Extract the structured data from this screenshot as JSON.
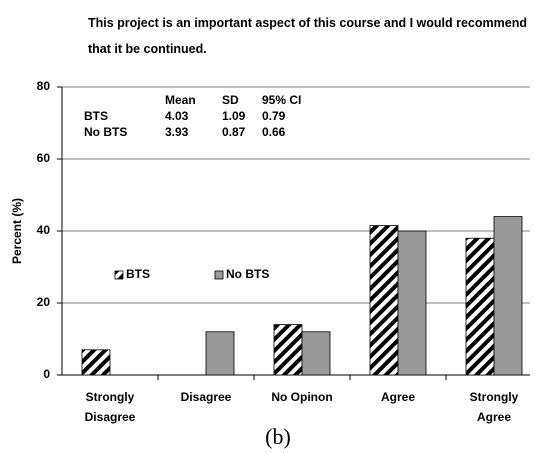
{
  "chart_data": {
    "type": "bar",
    "title": "This project is an important aspect of this course and I would recommend that it be continued.",
    "y_label": "Percent (%)",
    "caption": "(b)",
    "categories": [
      "Strongly Disagree",
      "Disagree",
      "No Opinon",
      "Agree",
      "Strongly Agree"
    ],
    "series": [
      {
        "name": "BTS",
        "color": "#000000",
        "pattern": "hatch",
        "values": [
          7,
          0,
          14,
          41.5,
          38
        ]
      },
      {
        "name": "No BTS",
        "color": "#999999",
        "values": [
          0,
          12,
          12,
          40,
          44
        ]
      }
    ],
    "ylim": [
      0,
      80
    ],
    "yticks": [
      0,
      20,
      40,
      60,
      80
    ],
    "grid": true,
    "legend": "inside",
    "stats": {
      "columns": [
        "Mean",
        "SD",
        "95% CI"
      ],
      "rows": [
        {
          "label": "BTS",
          "values": [
            4.03,
            1.09,
            0.79
          ]
        },
        {
          "label": "No BTS",
          "values": [
            3.93,
            0.87,
            0.66
          ]
        }
      ]
    }
  }
}
